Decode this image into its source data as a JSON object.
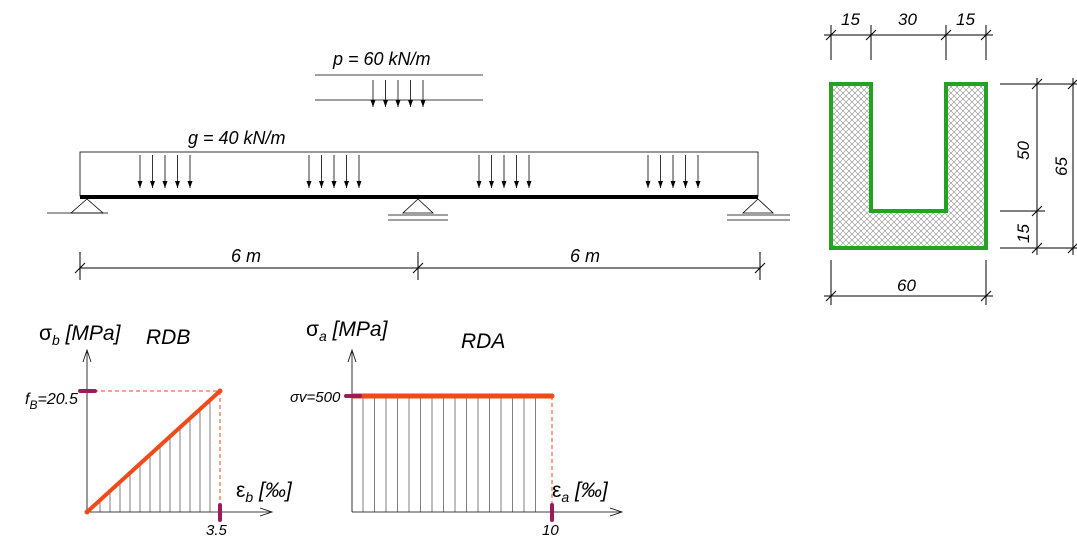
{
  "loads": {
    "live": "p = 60 kN/m",
    "dead": "g = 40 kN/m"
  },
  "beam": {
    "span_left": "6 m",
    "span_right": "6 m"
  },
  "section": {
    "top_left": "15",
    "top_mid": "30",
    "top_right": "15",
    "height_inner": "50",
    "height_total": "65",
    "height_bottom": "15",
    "width": "60",
    "outline_color": "#22a322",
    "hatch_color": "#888888"
  },
  "rdb": {
    "title": "RDB",
    "stress_symbol": "σ",
    "stress_sub": "b",
    "stress_unit": " [MPa]",
    "strain_symbol": "ε",
    "strain_sub": "b",
    "strain_unit": " [‰]",
    "fb_main": "f",
    "fb_sub": "B",
    "fb_value": "=20.5",
    "strain_limit": "3.5",
    "line_color": "#f04a1a",
    "marker_color": "#9c1c5a"
  },
  "rda": {
    "title": "RDA",
    "stress_symbol": "σ",
    "stress_sub": "a",
    "stress_unit": " [MPa]",
    "strain_symbol": "ε",
    "strain_sub": "a",
    "strain_unit": " [‰]",
    "yield_label": "σv=500",
    "strain_limit": "10",
    "line_color": "#f04a1a",
    "marker_color": "#9c1c5a"
  }
}
